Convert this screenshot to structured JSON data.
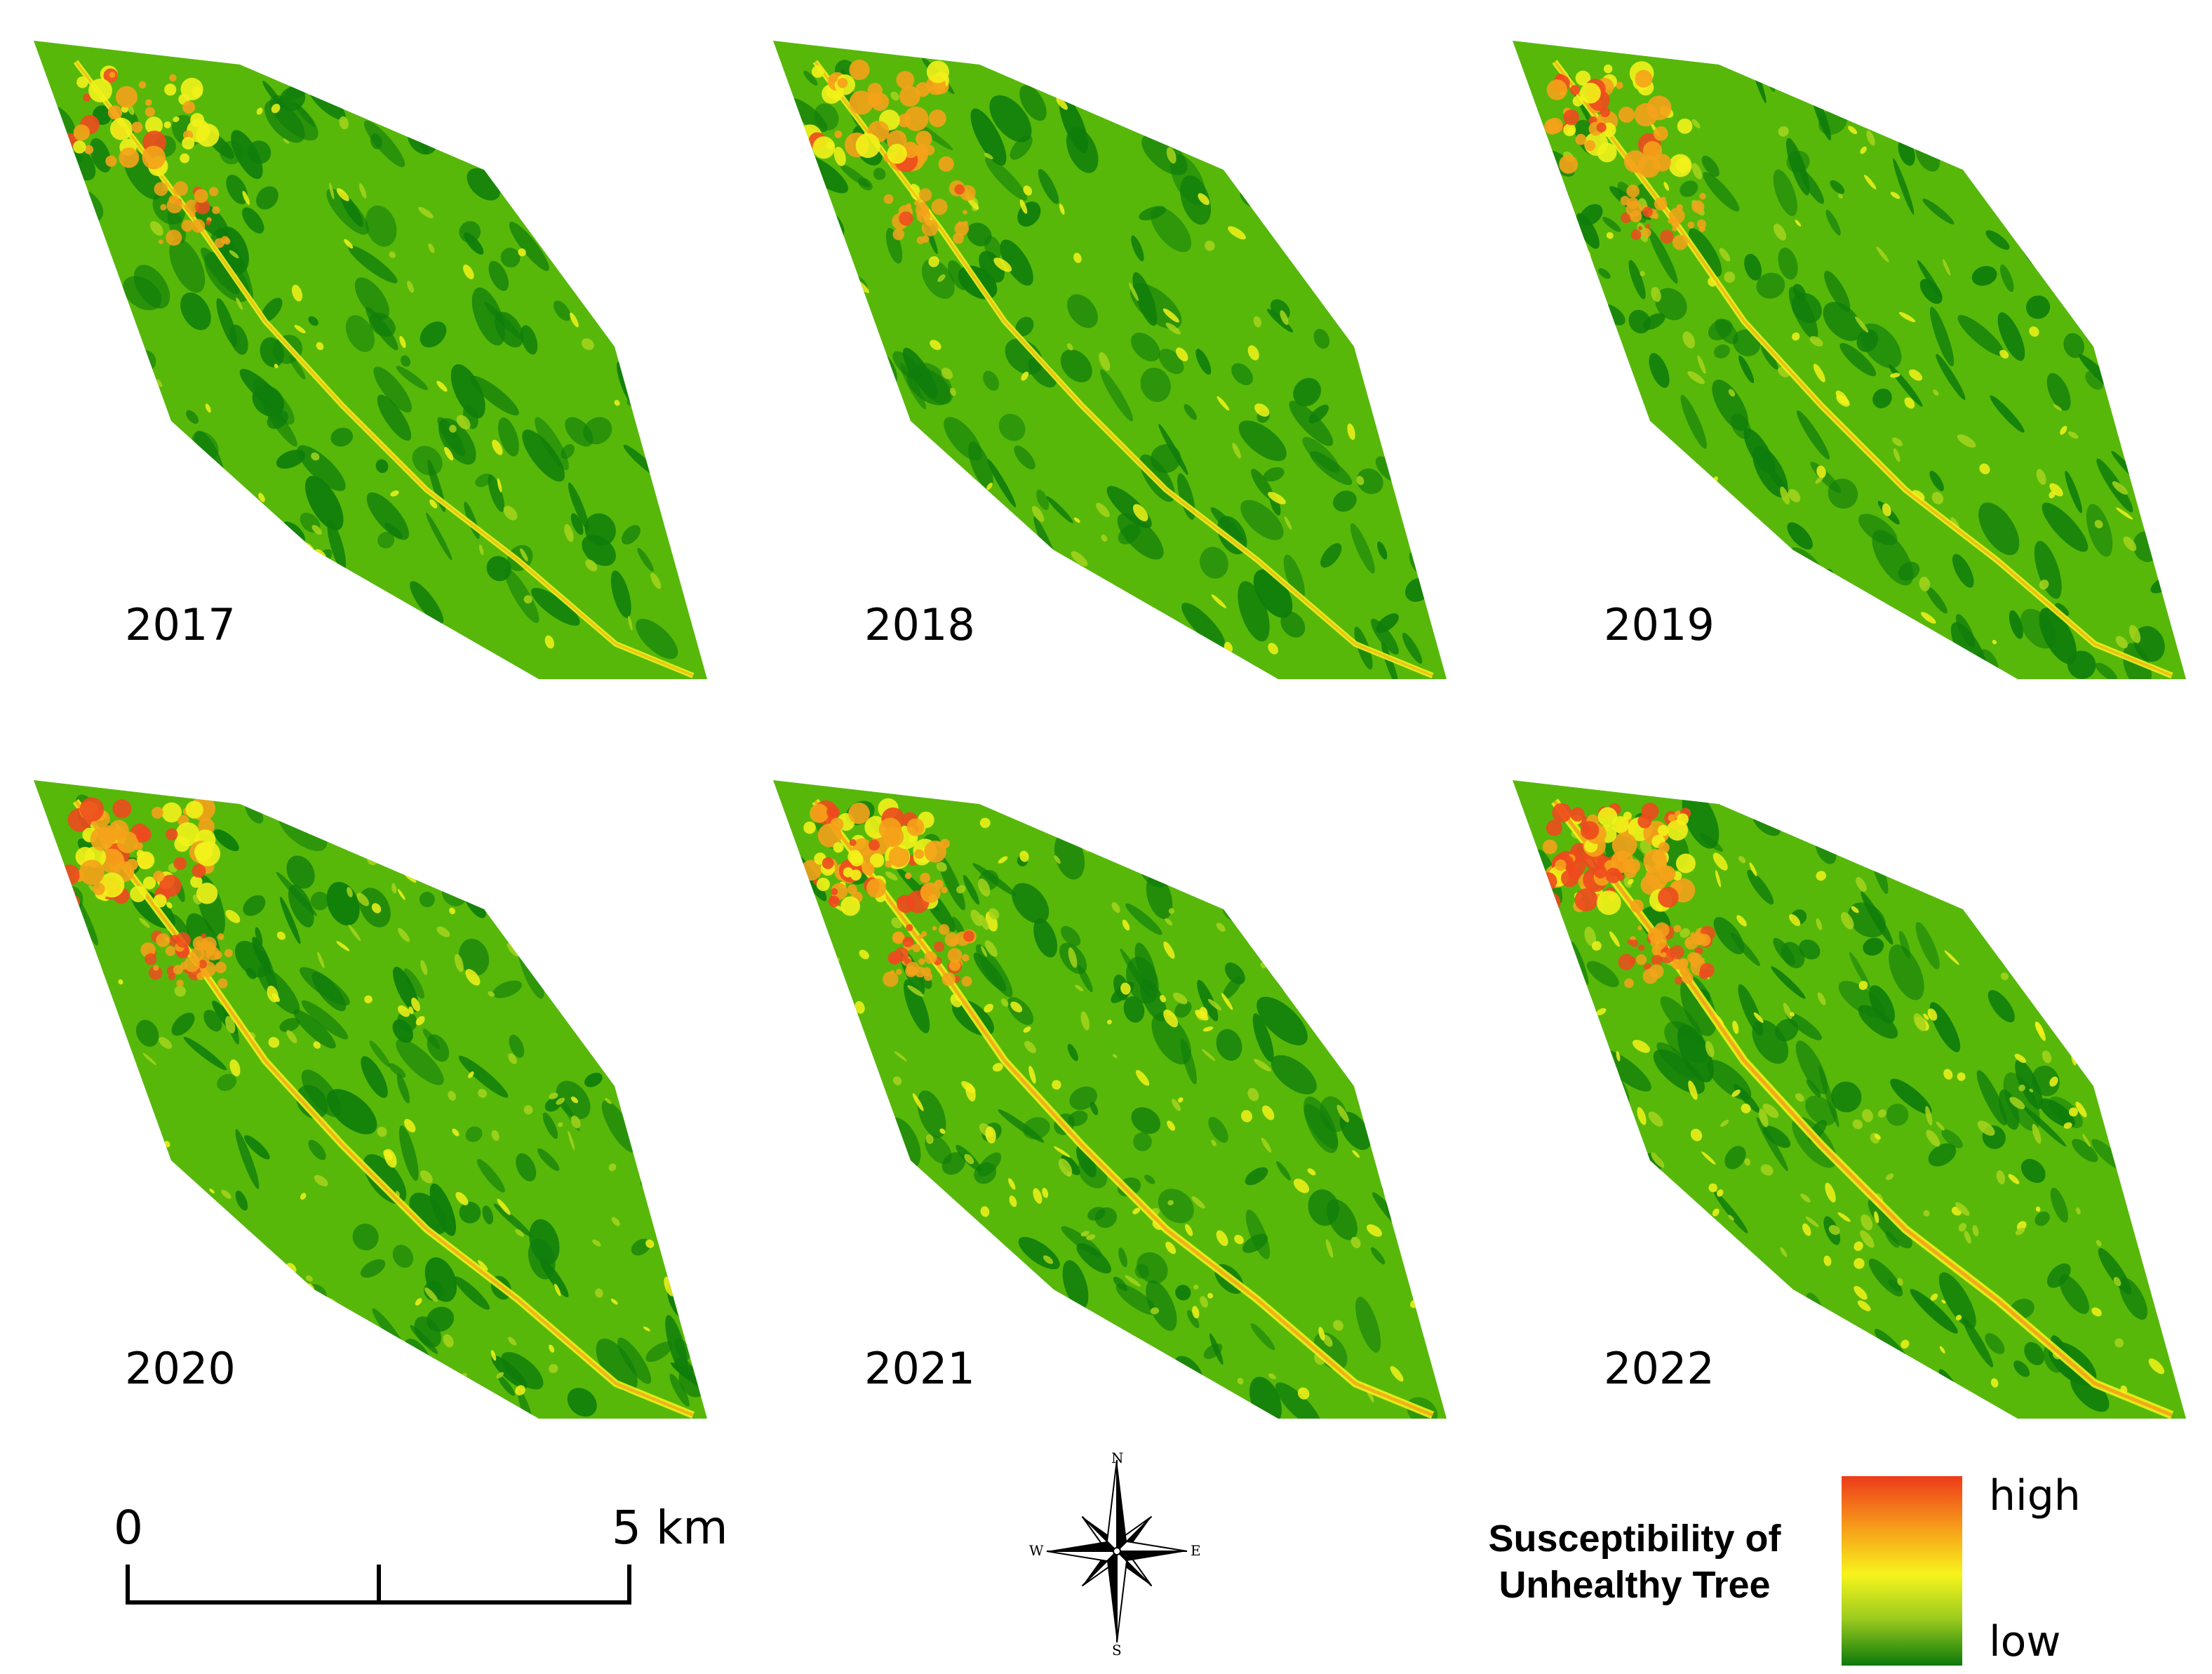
{
  "panels": [
    {
      "year": "2017",
      "hotspot": 0.3
    },
    {
      "year": "2018",
      "hotspot": 0.35
    },
    {
      "year": "2019",
      "hotspot": 0.45
    },
    {
      "year": "2020",
      "hotspot": 0.7
    },
    {
      "year": "2021",
      "hotspot": 0.85
    },
    {
      "year": "2022",
      "hotspot": 1.0
    }
  ],
  "scale_bar": {
    "start_label": "0",
    "end_label": "5 km"
  },
  "compass": {
    "n": "N",
    "s": "S",
    "e": "E",
    "w": "W"
  },
  "legend": {
    "title_line1": "Susceptibility of",
    "title_line2": "Unhealthy Tree",
    "high_label": "high",
    "low_label": "low"
  },
  "colors": {
    "dark_green": "#0f7d0b",
    "green": "#57b80a",
    "light_green": "#a6d41c",
    "yellow": "#f2f21a",
    "orange": "#f5a21a",
    "red": "#ee4a1e"
  }
}
